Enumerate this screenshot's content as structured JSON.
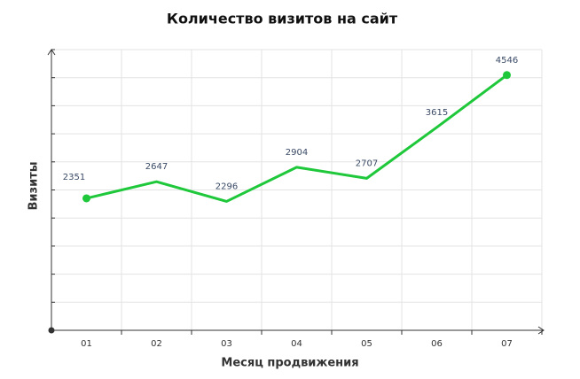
{
  "chart_data": {
    "type": "line",
    "title": "Количество визитов на сайт",
    "x_label": "Месяц продвижения",
    "y_label": "Визиты",
    "categories": [
      "01",
      "02",
      "03",
      "04",
      "05",
      "06",
      "07"
    ],
    "values": [
      2351,
      2647,
      2296,
      2904,
      2707,
      3615,
      4546
    ],
    "color": "#1ec83a",
    "ylim": [
      0,
      5000
    ],
    "yticks": [
      0,
      500,
      1000,
      1500,
      2000,
      2500,
      3000,
      3500,
      4000,
      4500,
      5000
    ],
    "grid": true
  }
}
